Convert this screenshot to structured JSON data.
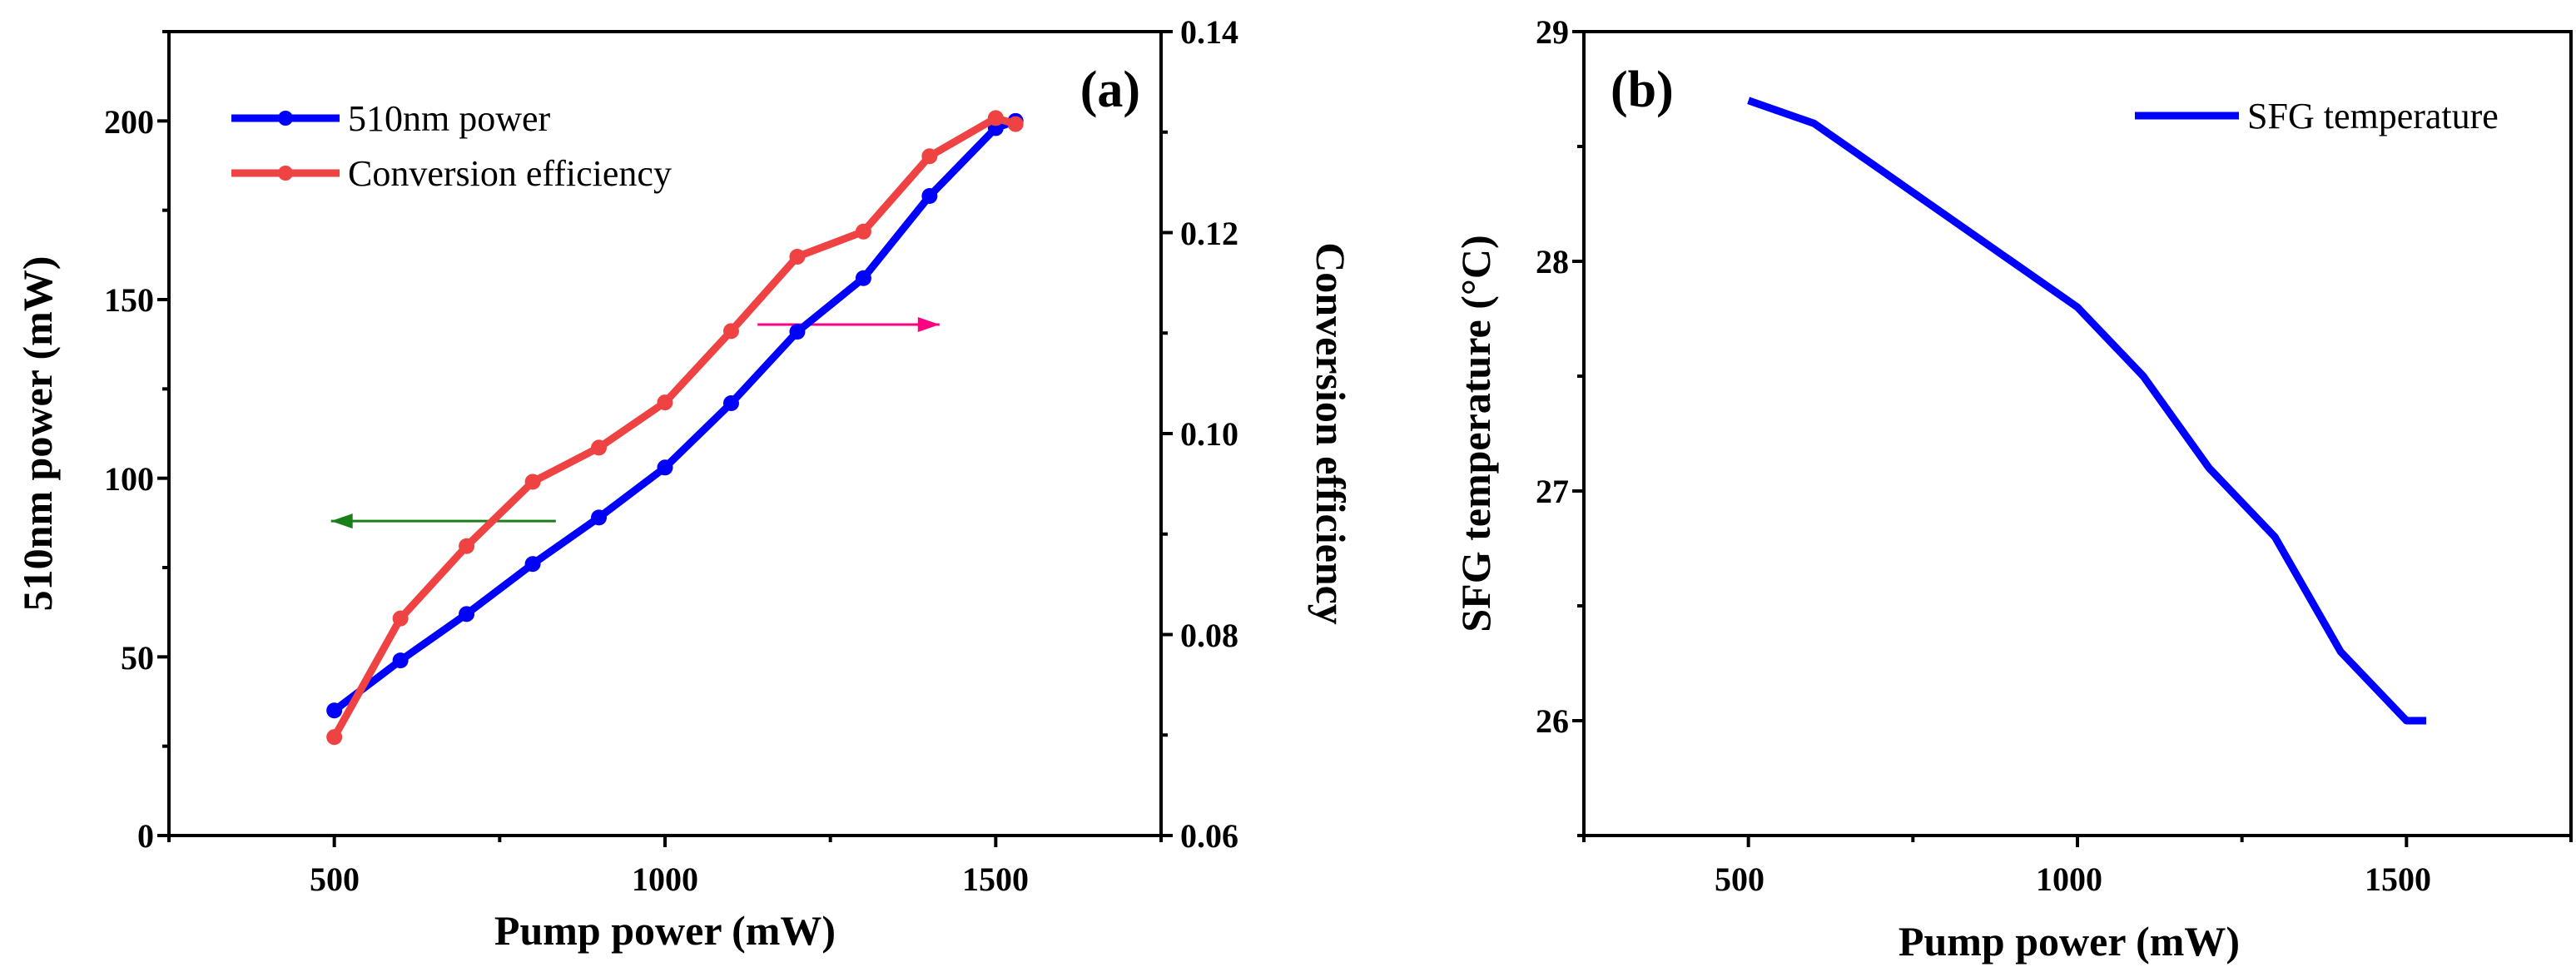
{
  "colors": {
    "blue": "#0000ff",
    "red": "#ef4343",
    "green_arrow": "#1a7f1a",
    "pink_arrow": "#ff0080",
    "axis": "#000000"
  },
  "chart_data": [
    {
      "id": "a",
      "type": "line",
      "panel_label": "(a)",
      "xlabel": "Pump power (mW)",
      "ylabel": "510nm power (mW)",
      "y2label": "Conversion efficiency",
      "xlim": [
        250,
        1750
      ],
      "ylim": [
        0,
        225
      ],
      "y2lim": [
        0.06,
        0.14
      ],
      "xticks": [
        500,
        1000,
        1500
      ],
      "yticks": [
        0,
        50,
        100,
        150,
        200
      ],
      "y2ticks": [
        "0.06",
        "0.08",
        "0.10",
        "0.12",
        "0.14"
      ],
      "legend_position": "top-left",
      "series": [
        {
          "name": "510nm power",
          "axis": "left",
          "color": "#0000ff",
          "markers": true,
          "x": [
            500,
            600,
            700,
            800,
            900,
            1000,
            1100,
            1200,
            1300,
            1400,
            1500,
            1530
          ],
          "y": [
            35,
            49,
            62,
            76,
            89,
            103,
            121,
            141,
            156,
            179,
            198,
            200
          ]
        },
        {
          "name": "Conversion efficiency",
          "axis": "right",
          "color": "#ef4343",
          "markers": true,
          "x": [
            500,
            600,
            700,
            800,
            900,
            1000,
            1100,
            1200,
            1300,
            1400,
            1500,
            1530
          ],
          "y": [
            0.0698,
            0.0816,
            0.0888,
            0.0952,
            0.0986,
            0.1031,
            0.1102,
            0.1176,
            0.1201,
            0.1276,
            0.1314,
            0.1308
          ]
        }
      ],
      "annotations": [
        {
          "type": "arrow",
          "direction": "left",
          "color": "#1a7f1a",
          "from": [
            835,
            88
          ],
          "to": [
            495,
            88
          ],
          "axis": "left",
          "meaning": "510nm power uses left axis"
        },
        {
          "type": "arrow",
          "direction": "right",
          "color": "#ff0080",
          "from": [
            1140,
            143
          ],
          "to": [
            1415,
            143
          ],
          "axis": "left",
          "meaning": "Conversion efficiency uses right axis"
        }
      ]
    },
    {
      "id": "b",
      "type": "line",
      "panel_label": "(b)",
      "xlabel": "Pump power (mW)",
      "ylabel": "SFG temperature (°C)",
      "xlim": [
        250,
        1750
      ],
      "ylim": [
        25.5,
        29
      ],
      "xticks": [
        500,
        1000,
        1500
      ],
      "yticks": [
        26,
        27,
        28,
        29
      ],
      "legend_position": "top-right",
      "series": [
        {
          "name": "SFG temperature",
          "color": "#0000ff",
          "markers": false,
          "x": [
            500,
            600,
            700,
            800,
            900,
            1000,
            1100,
            1200,
            1300,
            1400,
            1500,
            1530
          ],
          "y": [
            28.7,
            28.6,
            28.4,
            28.2,
            28.0,
            27.8,
            27.5,
            27.1,
            26.8,
            26.3,
            26.0,
            26.0
          ]
        }
      ]
    }
  ]
}
